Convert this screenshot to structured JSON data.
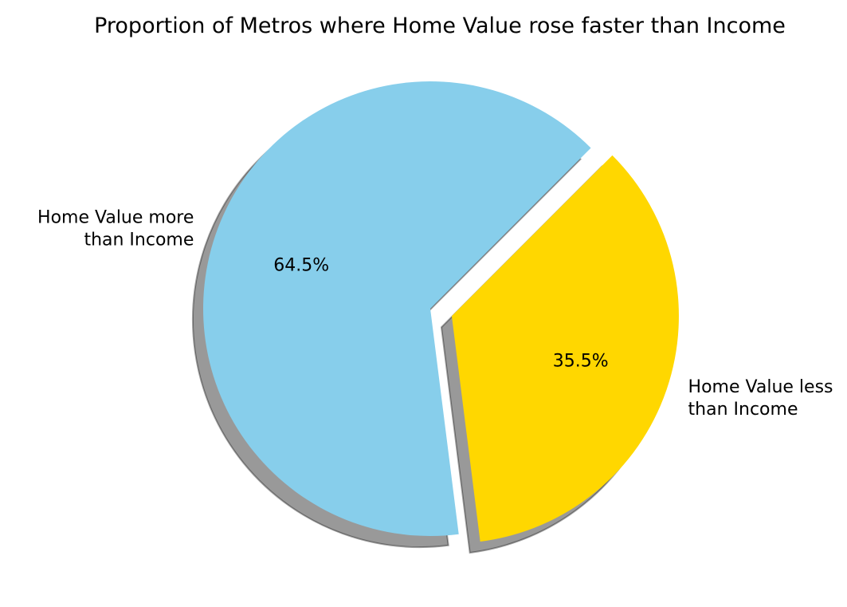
{
  "chart_data": {
    "type": "pie",
    "title": "Proportion of Metros where Home Value rose faster than Income",
    "slices": [
      {
        "label_lines": [
          "Home Value more",
          "than Income"
        ],
        "value": 64.5,
        "pct_label": "64.5%",
        "color": "#87CEEB",
        "explode": 0
      },
      {
        "label_lines": [
          "Home Value less",
          "than Income"
        ],
        "value": 35.5,
        "pct_label": "35.5%",
        "color": "#FFD700",
        "explode": 0.1
      }
    ],
    "start_angle_deg": 45,
    "counterclockwise": true,
    "shadow": true
  }
}
